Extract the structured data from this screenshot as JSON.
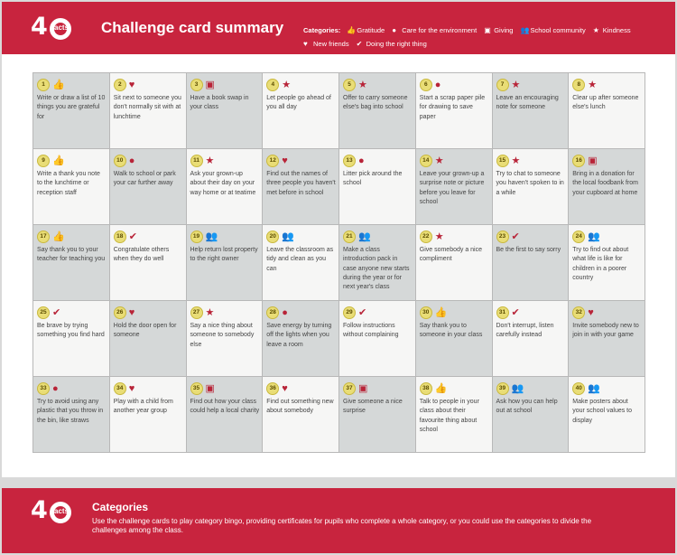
{
  "header": {
    "logo_number": "4",
    "logo_text": "acts",
    "title": "Challenge card summary",
    "categories_label": "Categories:",
    "categories": [
      {
        "icon": "thumbs-up-icon",
        "glyph": "👍",
        "label": "Gratitude"
      },
      {
        "icon": "globe-icon",
        "glyph": "●",
        "label": "Care for the environment"
      },
      {
        "icon": "gift-icon",
        "glyph": "▣",
        "label": "Giving"
      },
      {
        "icon": "people-icon",
        "glyph": "👥",
        "label": "School community"
      },
      {
        "icon": "star-icon",
        "glyph": "★",
        "label": "Kindness"
      },
      {
        "icon": "heart-icon",
        "glyph": "♥",
        "label": "New friends"
      },
      {
        "icon": "check-icon",
        "glyph": "✔",
        "label": "Doing the right thing"
      }
    ]
  },
  "icons": {
    "thumb": "👍",
    "heart": "♥",
    "gift": "▣",
    "star": "★",
    "globe": "●",
    "people": "👥",
    "check": "✔"
  },
  "colors": {
    "brand_red": "#c8243e",
    "icon_red": "#b82438",
    "badge_yellow": "#e9dd76",
    "card_grey": "#d5d8d8",
    "card_light": "#f6f6f5"
  },
  "cards": [
    {
      "n": "1",
      "icon": "thumb",
      "text": "Write or draw a list of 10 things you are grateful for"
    },
    {
      "n": "2",
      "icon": "heart",
      "text": "Sit next to someone you don't normally sit with at lunchtime"
    },
    {
      "n": "3",
      "icon": "gift",
      "text": "Have a book swap in your class"
    },
    {
      "n": "4",
      "icon": "star",
      "text": "Let people go ahead of you all day"
    },
    {
      "n": "5",
      "icon": "star",
      "text": "Offer to carry someone else's bag into school"
    },
    {
      "n": "6",
      "icon": "globe",
      "text": "Start a scrap paper pile for drawing to save paper"
    },
    {
      "n": "7",
      "icon": "star",
      "text": "Leave an encouraging note for someone"
    },
    {
      "n": "8",
      "icon": "star",
      "text": "Clear up after someone else's lunch"
    },
    {
      "n": "9",
      "icon": "thumb",
      "text": "Write a thank you note to the lunchtime or reception staff"
    },
    {
      "n": "10",
      "icon": "globe",
      "text": "Walk to school or park your car further away"
    },
    {
      "n": "11",
      "icon": "star",
      "text": "Ask your grown-up about their day on your way home or at teatime"
    },
    {
      "n": "12",
      "icon": "heart",
      "text": "Find out the names of three people you haven't met before in school"
    },
    {
      "n": "13",
      "icon": "globe",
      "text": "Litter pick around the school"
    },
    {
      "n": "14",
      "icon": "star",
      "text": "Leave your grown-up a surprise note or picture before you leave for school"
    },
    {
      "n": "15",
      "icon": "star",
      "text": "Try to chat to someone you haven't spoken to in a while"
    },
    {
      "n": "16",
      "icon": "gift",
      "text": "Bring in a donation for the local foodbank from your cupboard at home"
    },
    {
      "n": "17",
      "icon": "thumb",
      "text": "Say thank you to your teacher for teaching you"
    },
    {
      "n": "18",
      "icon": "check",
      "text": "Congratulate others when they do well"
    },
    {
      "n": "19",
      "icon": "people",
      "text": "Help return lost property to the right owner"
    },
    {
      "n": "20",
      "icon": "people",
      "text": "Leave the classroom as tidy and clean as you can"
    },
    {
      "n": "21",
      "icon": "people",
      "text": "Make a class introduction pack in case anyone new starts during the year or for next year's class"
    },
    {
      "n": "22",
      "icon": "star",
      "text": "Give somebody a nice compliment"
    },
    {
      "n": "23",
      "icon": "check",
      "text": "Be the first to say sorry"
    },
    {
      "n": "24",
      "icon": "people",
      "text": "Try to find out about what life is like for children in a poorer country"
    },
    {
      "n": "25",
      "icon": "check",
      "text": "Be brave by trying something you find hard"
    },
    {
      "n": "26",
      "icon": "heart",
      "text": "Hold the door open for someone"
    },
    {
      "n": "27",
      "icon": "star",
      "text": "Say a nice thing about someone to somebody else"
    },
    {
      "n": "28",
      "icon": "globe",
      "text": "Save energy by turning off the lights when you leave a room"
    },
    {
      "n": "29",
      "icon": "check",
      "text": "Follow instructions without complaining"
    },
    {
      "n": "30",
      "icon": "thumb",
      "text": "Say thank you to someone in your class"
    },
    {
      "n": "31",
      "icon": "check",
      "text": "Don't interrupt, listen carefully instead"
    },
    {
      "n": "32",
      "icon": "heart",
      "text": "Invite somebody new to join in with your game"
    },
    {
      "n": "33",
      "icon": "globe",
      "text": "Try to avoid using any plastic that you throw in the bin, like straws"
    },
    {
      "n": "34",
      "icon": "heart",
      "text": "Play with a child from another year group"
    },
    {
      "n": "35",
      "icon": "gift",
      "text": "Find out how your class could help a local charity"
    },
    {
      "n": "36",
      "icon": "heart",
      "text": "Find out something new about somebody"
    },
    {
      "n": "37",
      "icon": "gift",
      "text": "Give someone a nice surprise"
    },
    {
      "n": "38",
      "icon": "thumb",
      "text": "Talk to people in your class about their favourite thing about school"
    },
    {
      "n": "39",
      "icon": "people",
      "text": "Ask how you can help out at school"
    },
    {
      "n": "40",
      "icon": "people",
      "text": "Make posters about your school values to display"
    }
  ],
  "footer": {
    "logo_number": "4",
    "logo_text": "acts",
    "title": "Categories",
    "body": "Use the challenge cards to play category bingo, providing certificates for pupils who complete a whole category, or you could use the categories to divide the challenges among the class."
  }
}
